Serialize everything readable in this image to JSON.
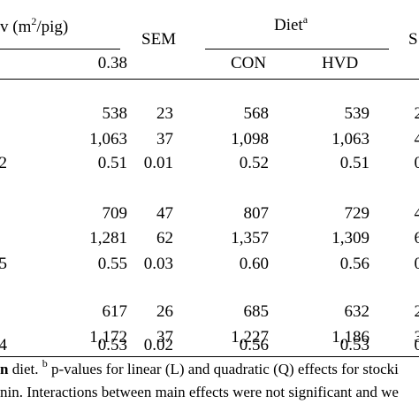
{
  "header": {
    "stocking_density_label": "v (m",
    "stocking_density_sup": "2",
    "stocking_density_tail": "/pig)",
    "sem_label_1": "SEM",
    "diet_label": "Diet",
    "diet_sup": "a",
    "sem_label_2": "S",
    "density_value": "0.38",
    "diet_con": "CON",
    "diet_hvd": "HVD"
  },
  "rows": [
    {
      "partial": "",
      "density": "538",
      "sem": "23",
      "con": "568",
      "hvd": "539",
      "sem2": "2"
    },
    {
      "partial": "",
      "density": "1,063",
      "sem": "37",
      "con": "1,098",
      "hvd": "1,063",
      "sem2": "4"
    },
    {
      "partial": "2",
      "density": "0.51",
      "sem": "0.01",
      "con": "0.52",
      "hvd": "0.51",
      "sem2": "0"
    },
    {
      "partial": "",
      "density": "709",
      "sem": "47",
      "con": "807",
      "hvd": "729",
      "sem2": "4"
    },
    {
      "partial": "",
      "density": "1,281",
      "sem": "62",
      "con": "1,357",
      "hvd": "1,309",
      "sem2": "6"
    },
    {
      "partial": "5",
      "density": "0.55",
      "sem": "0.03",
      "con": "0.60",
      "hvd": "0.56",
      "sem2": "0"
    },
    {
      "partial": "",
      "density": "617",
      "sem": "26",
      "con": "685",
      "hvd": "632",
      "sem2": "2"
    },
    {
      "partial": "",
      "density": "1,172",
      "sem": "37",
      "con": "1,227",
      "hvd": "1,186",
      "sem2": "3"
    },
    {
      "partial": "4",
      "density": "0.53",
      "sem": "0.02",
      "con": "0.56",
      "hvd": "0.53",
      "sem2": "0"
    }
  ],
  "footnote": {
    "line1_bold": "n",
    "line1_text": " diet. ",
    "line1_sup": "b",
    "line1_rest": " p-values for linear (L) and quadratic (Q) effects for stocki",
    "line2": "nin. Interactions between main effects were not significant and we"
  }
}
